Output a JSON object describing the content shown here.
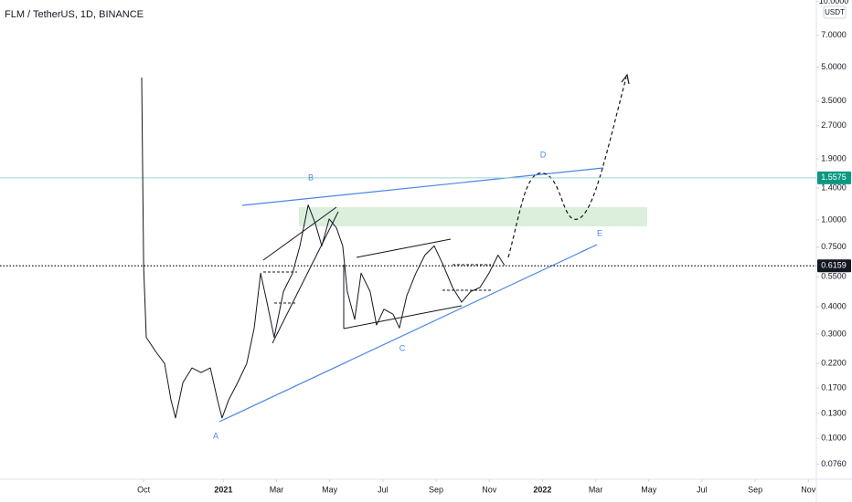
{
  "chart_data": {
    "type": "line",
    "title": "FLM / TetherUS, 1D, BINANCE",
    "currency": "USDT",
    "log_scale": true,
    "color": "#131722",
    "x": [
      -0.07,
      0,
      0.1,
      0.45,
      0.79,
      1.03,
      1.2,
      1.48,
      1.82,
      2.16,
      2.51,
      2.78,
      2.95,
      3.2,
      3.54,
      3.88,
      4.16,
      4.4,
      4.64,
      4.91,
      5.26,
      5.6,
      5.88,
      6.19,
      6.46,
      6.7,
      6.98,
      7.25,
      7.49,
      7.66,
      7.94,
      8.18,
      8.52,
      8.76,
      9.04,
      9.38,
      9.62,
      9.9,
      10.24,
      10.58,
      10.93,
      11.27,
      11.62,
      11.96,
      12.3,
      12.65,
      12.99,
      13.33,
      13.57
    ],
    "values": [
      4.48,
      0.62,
      0.29,
      0.25,
      0.22,
      0.15,
      0.124,
      0.18,
      0.21,
      0.2,
      0.21,
      0.15,
      0.124,
      0.15,
      0.18,
      0.22,
      0.32,
      0.57,
      0.42,
      0.29,
      0.47,
      0.57,
      0.76,
      1.17,
      0.96,
      0.76,
      1.01,
      0.92,
      0.76,
      0.47,
      0.35,
      0.57,
      0.47,
      0.33,
      0.39,
      0.37,
      0.32,
      0.45,
      0.57,
      0.69,
      0.76,
      0.62,
      0.49,
      0.42,
      0.47,
      0.49,
      0.57,
      0.69,
      0.62
    ],
    "xlim": [
      -5.4,
      25.3
    ],
    "ylim": [
      0.065,
      10.15
    ],
    "xticks": [
      {
        "value": 0,
        "label": "Oct"
      },
      {
        "value": 3,
        "label": "2021"
      },
      {
        "value": 5,
        "label": "Mar"
      },
      {
        "value": 7,
        "label": "May"
      },
      {
        "value": 9,
        "label": "Jul"
      },
      {
        "value": 11,
        "label": "Sep"
      },
      {
        "value": 13,
        "label": "Nov"
      },
      {
        "value": 15,
        "label": "2022"
      },
      {
        "value": 17,
        "label": "Mar"
      },
      {
        "value": 19,
        "label": "May"
      },
      {
        "value": 21,
        "label": "Jul"
      },
      {
        "value": 23,
        "label": "Sep"
      },
      {
        "value": 25,
        "label": "Nov"
      }
    ],
    "yticks": [
      {
        "value": 0.076,
        "label": "0.0760"
      },
      {
        "value": 0.1,
        "label": "0.1000"
      },
      {
        "value": 0.13,
        "label": "0.1300"
      },
      {
        "value": 0.17,
        "label": "0.1700"
      },
      {
        "value": 0.22,
        "label": "0.2200"
      },
      {
        "value": 0.3,
        "label": "0.3000"
      },
      {
        "value": 0.4,
        "label": "0.4000"
      },
      {
        "value": 0.55,
        "label": "0.5500"
      },
      {
        "value": 0.75,
        "label": "0.7500"
      },
      {
        "value": 1,
        "label": "1.0000"
      },
      {
        "value": 1.4,
        "label": "1.4000"
      },
      {
        "value": 1.9,
        "label": "1.9000"
      },
      {
        "value": 2.7,
        "label": "2.7000"
      },
      {
        "value": 3.5,
        "label": "3.5000"
      },
      {
        "value": 5,
        "label": "5.0000"
      },
      {
        "value": 7,
        "label": "7.0000"
      },
      {
        "value": 10,
        "label": "10.0000"
      }
    ],
    "horizontal_line": 1.5575,
    "horizontal_line_color": "#089981",
    "last_price": 0.6159,
    "last_price_color": "#131722",
    "wave_labels": [
      "A",
      "B",
      "C",
      "D",
      "E"
    ],
    "annotation_color": "#4a86e8"
  }
}
